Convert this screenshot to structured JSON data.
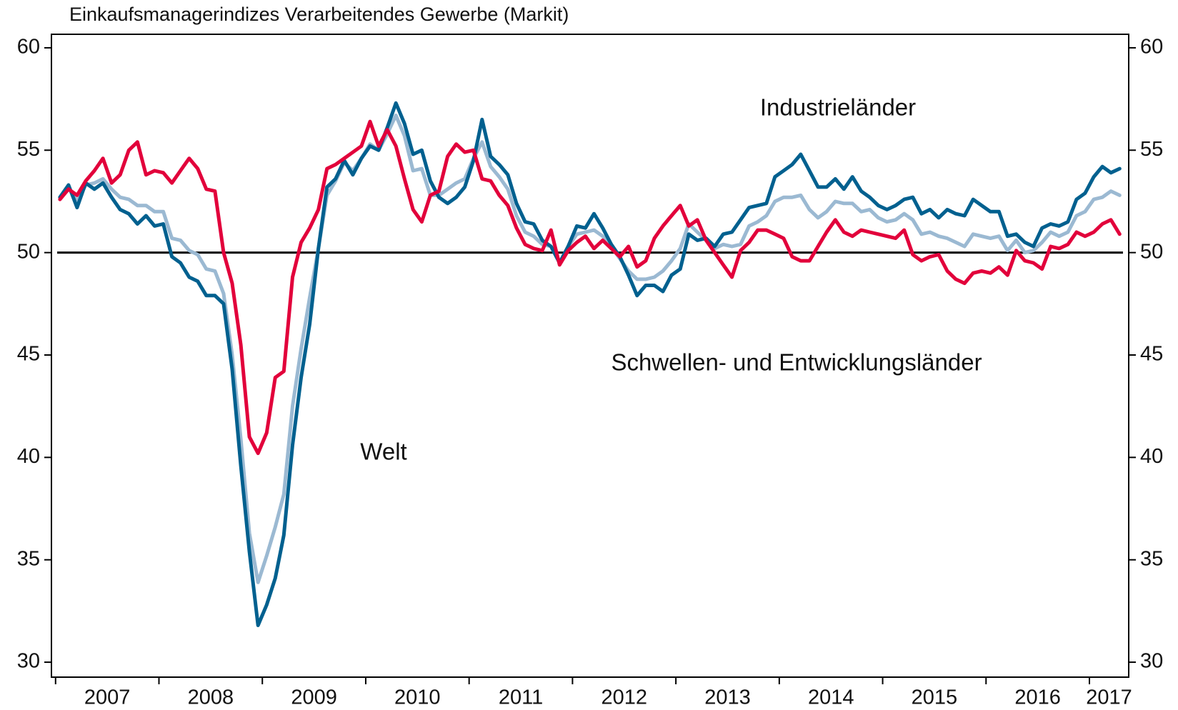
{
  "chart_data": {
    "type": "line",
    "title": "Einkaufsmanagerindizes Verarbeitendes Gewerbe (Markit)",
    "x": [
      2007.042,
      2007.125,
      2007.208,
      2007.292,
      2007.375,
      2007.458,
      2007.542,
      2007.625,
      2007.708,
      2007.792,
      2007.875,
      2007.958,
      2008.042,
      2008.125,
      2008.208,
      2008.292,
      2008.375,
      2008.458,
      2008.542,
      2008.625,
      2008.708,
      2008.792,
      2008.875,
      2008.958,
      2009.042,
      2009.125,
      2009.208,
      2009.292,
      2009.375,
      2009.458,
      2009.542,
      2009.625,
      2009.708,
      2009.792,
      2009.875,
      2009.958,
      2010.042,
      2010.125,
      2010.208,
      2010.292,
      2010.375,
      2010.458,
      2010.542,
      2010.625,
      2010.708,
      2010.792,
      2010.875,
      2010.958,
      2011.042,
      2011.125,
      2011.208,
      2011.292,
      2011.375,
      2011.458,
      2011.542,
      2011.625,
      2011.708,
      2011.792,
      2011.875,
      2011.958,
      2012.042,
      2012.125,
      2012.208,
      2012.292,
      2012.375,
      2012.458,
      2012.542,
      2012.625,
      2012.708,
      2012.792,
      2012.875,
      2012.958,
      2013.042,
      2013.125,
      2013.208,
      2013.292,
      2013.375,
      2013.458,
      2013.542,
      2013.625,
      2013.708,
      2013.792,
      2013.875,
      2013.958,
      2014.042,
      2014.125,
      2014.208,
      2014.292,
      2014.375,
      2014.458,
      2014.542,
      2014.625,
      2014.708,
      2014.792,
      2014.875,
      2014.958,
      2015.042,
      2015.125,
      2015.208,
      2015.292,
      2015.375,
      2015.458,
      2015.542,
      2015.625,
      2015.708,
      2015.792,
      2015.875,
      2015.958,
      2016.042,
      2016.125,
      2016.208,
      2016.292,
      2016.375,
      2016.458,
      2016.542,
      2016.625,
      2016.708,
      2016.792,
      2016.875,
      2016.958,
      2017.042,
      2017.125,
      2017.208,
      2017.292
    ],
    "series": [
      {
        "name": "Welt",
        "color": "#9bb9d2",
        "values": [
          52.7,
          53.2,
          52.5,
          53.3,
          53.4,
          53.6,
          53.1,
          52.7,
          52.6,
          52.3,
          52.3,
          52.0,
          52.0,
          50.7,
          50.6,
          50.1,
          49.9,
          49.2,
          49.1,
          48.0,
          45.0,
          40.9,
          36.3,
          33.9,
          35.2,
          36.6,
          38.2,
          42.5,
          45.3,
          47.8,
          50.2,
          52.8,
          53.5,
          54.4,
          54.0,
          54.6,
          55.3,
          55.0,
          55.8,
          56.7,
          55.7,
          54.0,
          54.1,
          52.8,
          52.8,
          53.1,
          53.4,
          53.6,
          54.6,
          55.4,
          54.2,
          53.7,
          53.1,
          51.8,
          51.0,
          50.8,
          50.4,
          50.3,
          49.5,
          50.3,
          50.9,
          51.0,
          51.1,
          50.8,
          50.3,
          49.7,
          49.1,
          48.7,
          48.7,
          48.8,
          49.1,
          49.6,
          50.2,
          51.4,
          51.0,
          50.6,
          50.2,
          50.4,
          50.3,
          50.4,
          51.3,
          51.5,
          51.8,
          52.5,
          52.7,
          52.7,
          52.8,
          52.1,
          51.7,
          52.0,
          52.5,
          52.4,
          52.4,
          52.0,
          52.1,
          51.7,
          51.5,
          51.6,
          51.9,
          51.6,
          50.9,
          51.0,
          50.8,
          50.7,
          50.5,
          50.3,
          50.9,
          50.8,
          50.7,
          50.8,
          50.1,
          50.6,
          50.0,
          50.1,
          50.5,
          51.0,
          50.8,
          51.0,
          51.8,
          52.0,
          52.6,
          52.7,
          53.0,
          52.8
        ]
      },
      {
        "name": "Industrieländer",
        "color": "#00608f",
        "values": [
          52.7,
          53.3,
          52.2,
          53.4,
          53.1,
          53.4,
          52.7,
          52.1,
          51.9,
          51.4,
          51.8,
          51.3,
          51.4,
          49.8,
          49.5,
          48.8,
          48.6,
          47.9,
          47.9,
          47.5,
          44.3,
          39.6,
          35.4,
          31.8,
          32.8,
          34.1,
          36.2,
          40.6,
          43.9,
          46.5,
          50.2,
          53.2,
          53.6,
          54.5,
          53.8,
          54.6,
          55.2,
          55.0,
          56.1,
          57.3,
          56.3,
          54.8,
          55.0,
          53.5,
          52.7,
          52.4,
          52.7,
          53.2,
          54.5,
          56.5,
          54.7,
          54.3,
          53.8,
          52.4,
          51.5,
          51.4,
          50.6,
          50.3,
          49.5,
          50.3,
          51.3,
          51.2,
          51.9,
          51.2,
          50.4,
          49.8,
          48.9,
          47.9,
          48.4,
          48.4,
          48.1,
          48.9,
          49.2,
          50.9,
          50.6,
          50.7,
          50.3,
          50.9,
          51.0,
          51.6,
          52.2,
          52.3,
          52.4,
          53.7,
          54.0,
          54.3,
          54.8,
          54.0,
          53.2,
          53.2,
          53.6,
          53.1,
          53.7,
          53.0,
          52.7,
          52.3,
          52.1,
          52.3,
          52.6,
          52.7,
          51.9,
          52.1,
          51.7,
          52.1,
          51.9,
          51.8,
          52.6,
          52.3,
          52.0,
          52.0,
          50.8,
          50.9,
          50.5,
          50.3,
          51.2,
          51.4,
          51.3,
          51.5,
          52.6,
          52.9,
          53.7,
          54.2,
          53.9,
          54.1
        ]
      },
      {
        "name": "Schwellen- und Entwicklungsländer",
        "color": "#e2003b",
        "values": [
          52.6,
          53.1,
          52.8,
          53.5,
          54.0,
          54.6,
          53.4,
          53.8,
          55.0,
          55.4,
          53.8,
          54.0,
          53.9,
          53.4,
          54.0,
          54.6,
          54.1,
          53.1,
          53.0,
          50.0,
          48.5,
          45.5,
          41.0,
          40.2,
          41.2,
          43.9,
          44.2,
          48.8,
          50.5,
          51.2,
          52.1,
          54.1,
          54.3,
          54.6,
          54.9,
          55.2,
          56.4,
          55.2,
          56.0,
          55.2,
          53.6,
          52.1,
          51.5,
          52.8,
          53.0,
          54.7,
          55.3,
          54.9,
          55.0,
          53.6,
          53.5,
          52.8,
          52.3,
          51.2,
          50.4,
          50.2,
          50.1,
          51.1,
          49.4,
          50.1,
          50.5,
          50.8,
          50.2,
          50.6,
          50.2,
          49.8,
          50.3,
          49.3,
          49.6,
          50.7,
          51.3,
          51.8,
          52.3,
          51.3,
          51.6,
          50.6,
          50.0,
          49.4,
          48.8,
          50.1,
          50.5,
          51.1,
          51.1,
          50.9,
          50.7,
          49.8,
          49.6,
          49.6,
          50.3,
          51.0,
          51.6,
          51.0,
          50.8,
          51.1,
          51.0,
          50.9,
          50.8,
          50.7,
          51.1,
          49.9,
          49.6,
          49.8,
          49.9,
          49.1,
          48.7,
          48.5,
          49.0,
          49.1,
          49.0,
          49.3,
          48.9,
          50.1,
          49.6,
          49.5,
          49.2,
          50.3,
          50.2,
          50.4,
          51.0,
          50.8,
          51.0,
          51.4,
          51.6,
          50.9
        ]
      }
    ],
    "xlim": [
      2006.96,
      2017.38
    ],
    "xticks": [
      2007,
      2008,
      2009,
      2010,
      2011,
      2012,
      2013,
      2014,
      2015,
      2016,
      2017
    ],
    "ylim": [
      29.27,
      60.66
    ],
    "yticks": [
      30,
      35,
      40,
      45,
      50,
      55,
      60
    ],
    "hline": 50
  }
}
